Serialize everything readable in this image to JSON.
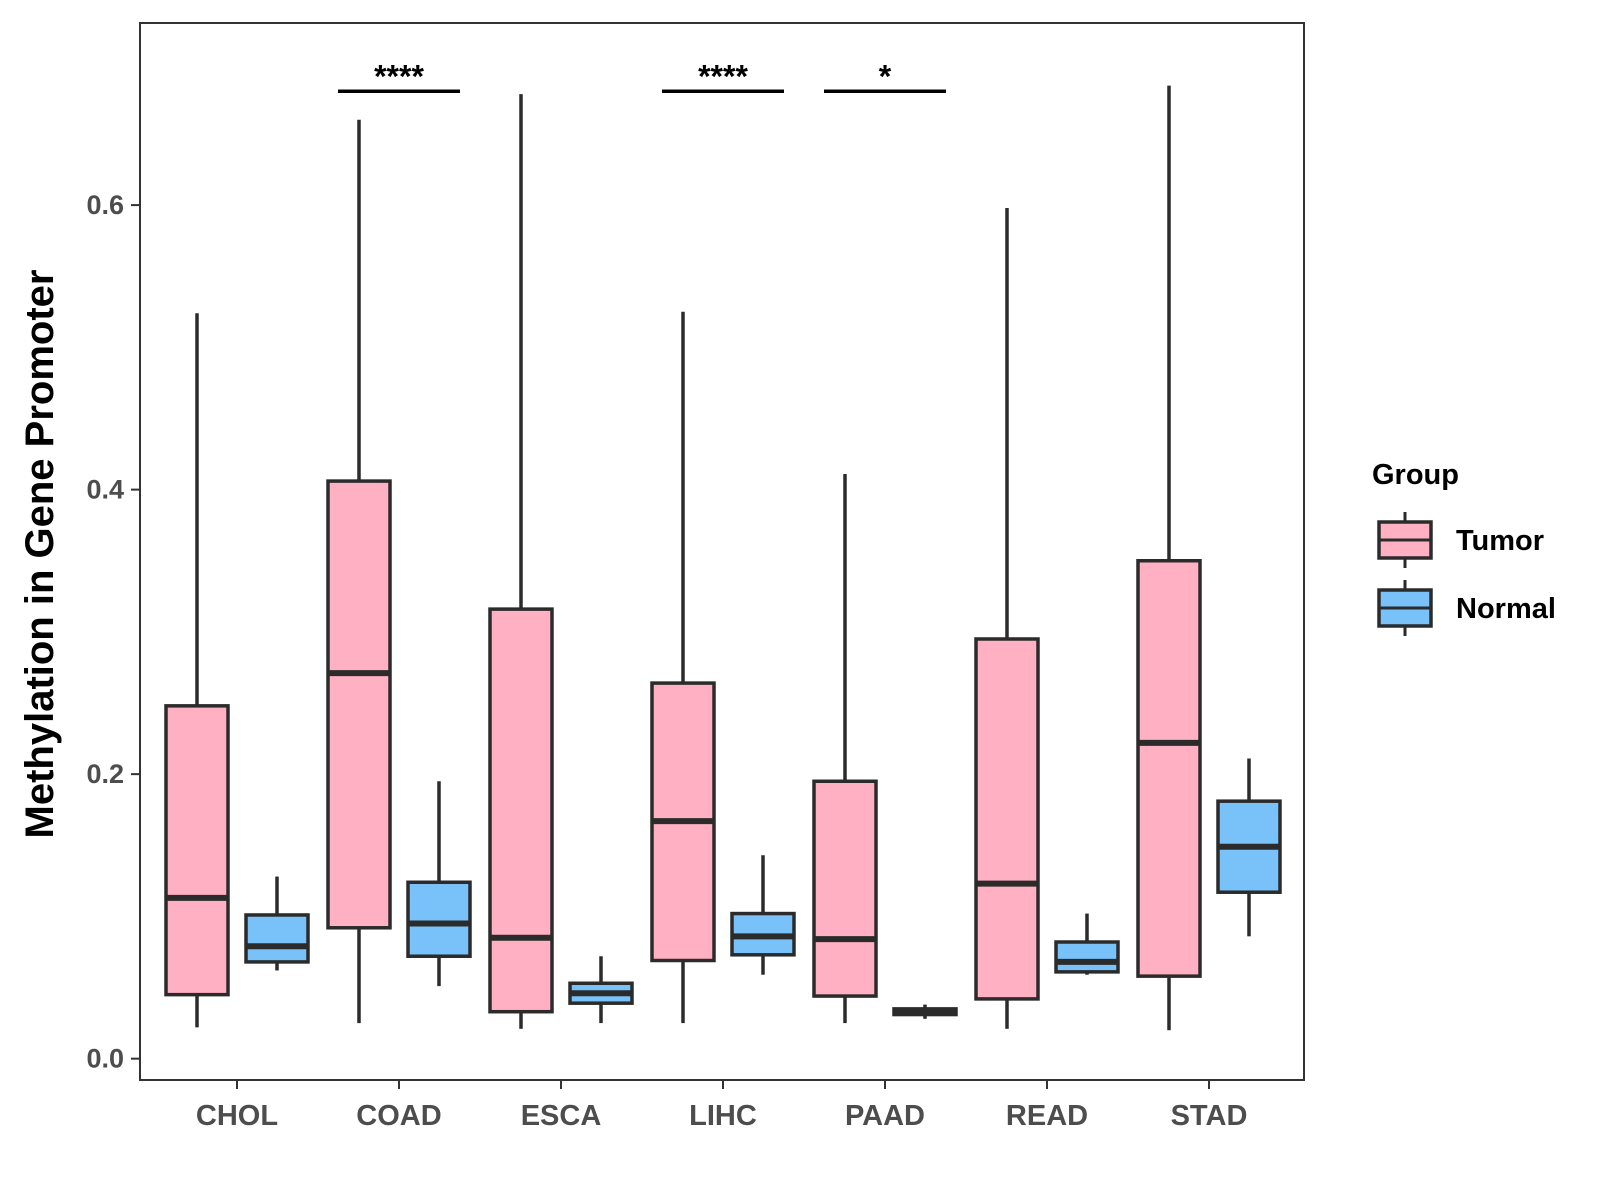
{
  "chart_data": {
    "type": "boxplot",
    "title": "",
    "xlabel": "",
    "ylabel": "Methylation in Gene Promoter",
    "ylim": [
      -0.015,
      0.728
    ],
    "yticks": [
      0.0,
      0.2,
      0.4,
      0.6
    ],
    "ytick_labels": [
      "0.0",
      "0.2",
      "0.4",
      "0.6"
    ],
    "categories": [
      "CHOL",
      "COAD",
      "ESCA",
      "LIHC",
      "PAAD",
      "READ",
      "STAD"
    ],
    "grid": false,
    "legend": {
      "title": "Group",
      "position": "right",
      "entries": [
        {
          "name": "Tumor",
          "color": "#ffb0c2"
        },
        {
          "name": "Normal",
          "color": "#78c1f9"
        }
      ]
    },
    "series": [
      {
        "name": "Tumor",
        "color": "#ffb0c2",
        "boxes": [
          {
            "min": 0.022,
            "q1": 0.045,
            "median": 0.113,
            "q3": 0.248,
            "max": 0.524
          },
          {
            "min": 0.025,
            "q1": 0.092,
            "median": 0.271,
            "q3": 0.406,
            "max": 0.66
          },
          {
            "min": 0.021,
            "q1": 0.033,
            "median": 0.085,
            "q3": 0.316,
            "max": 0.678
          },
          {
            "min": 0.025,
            "q1": 0.069,
            "median": 0.167,
            "q3": 0.264,
            "max": 0.525
          },
          {
            "min": 0.025,
            "q1": 0.044,
            "median": 0.084,
            "q3": 0.195,
            "max": 0.411
          },
          {
            "min": 0.021,
            "q1": 0.042,
            "median": 0.123,
            "q3": 0.295,
            "max": 0.598
          },
          {
            "min": 0.02,
            "q1": 0.058,
            "median": 0.222,
            "q3": 0.35,
            "max": 0.684
          }
        ]
      },
      {
        "name": "Normal",
        "color": "#78c1f9",
        "boxes": [
          {
            "min": 0.062,
            "q1": 0.068,
            "median": 0.079,
            "q3": 0.101,
            "max": 0.128
          },
          {
            "min": 0.051,
            "q1": 0.072,
            "median": 0.095,
            "q3": 0.124,
            "max": 0.195
          },
          {
            "min": 0.025,
            "q1": 0.039,
            "median": 0.046,
            "q3": 0.053,
            "max": 0.072
          },
          {
            "min": 0.059,
            "q1": 0.073,
            "median": 0.086,
            "q3": 0.102,
            "max": 0.143
          },
          {
            "min": 0.028,
            "q1": 0.031,
            "median": 0.033,
            "q3": 0.035,
            "max": 0.038
          },
          {
            "min": 0.059,
            "q1": 0.061,
            "median": 0.068,
            "q3": 0.082,
            "max": 0.102
          },
          {
            "min": 0.086,
            "q1": 0.117,
            "median": 0.149,
            "q3": 0.181,
            "max": 0.211
          }
        ]
      }
    ],
    "significance": [
      {
        "category": "COAD",
        "label": "****",
        "y": 0.68
      },
      {
        "category": "LIHC",
        "label": "****",
        "y": 0.68
      },
      {
        "category": "PAAD",
        "label": "*",
        "y": 0.68
      }
    ]
  },
  "style": {
    "box_stroke": "#2b2b2b",
    "axis_color": "#333333",
    "tick_text_color": "#4d4d4d"
  }
}
